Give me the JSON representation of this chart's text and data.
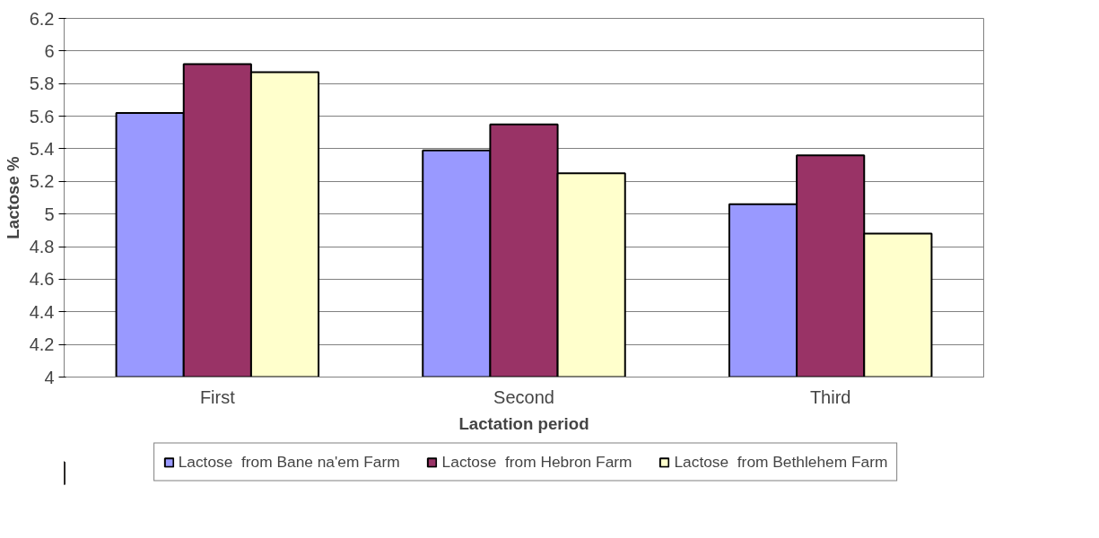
{
  "chart_data": {
    "type": "bar",
    "xlabel": "Lactation period",
    "ylabel": "Lactose %",
    "categories": [
      "First",
      "Second",
      "Third"
    ],
    "series": [
      {
        "name": "Lactose  from Bane na'em Farm",
        "color": "#9999ff",
        "values": [
          5.62,
          5.39,
          5.06
        ]
      },
      {
        "name": "Lactose  from Hebron Farm",
        "color": "#993366",
        "values": [
          5.92,
          5.55,
          5.36
        ]
      },
      {
        "name": "Lactose  from Bethlehem Farm",
        "color": "#ffffcc",
        "values": [
          5.87,
          5.25,
          4.88
        ]
      }
    ],
    "ylim": [
      4,
      6.2
    ],
    "yticks": [
      4,
      {
        "value": 4.2,
        "label": "4.2"
      },
      {
        "value": 4.4,
        "label": "4.4"
      },
      {
        "value": 4.6,
        "label": "4.6"
      },
      {
        "value": 4.8,
        "label": "4.8"
      },
      5,
      {
        "value": 5.2,
        "label": "5.2"
      },
      {
        "value": 5.4,
        "label": "5.4"
      },
      {
        "value": 5.6,
        "label": "5.6"
      },
      {
        "value": 5.8,
        "label": "5.8"
      },
      6,
      {
        "value": 6.2,
        "label": "6.2"
      }
    ],
    "grid": "y",
    "legend": "bottom"
  }
}
